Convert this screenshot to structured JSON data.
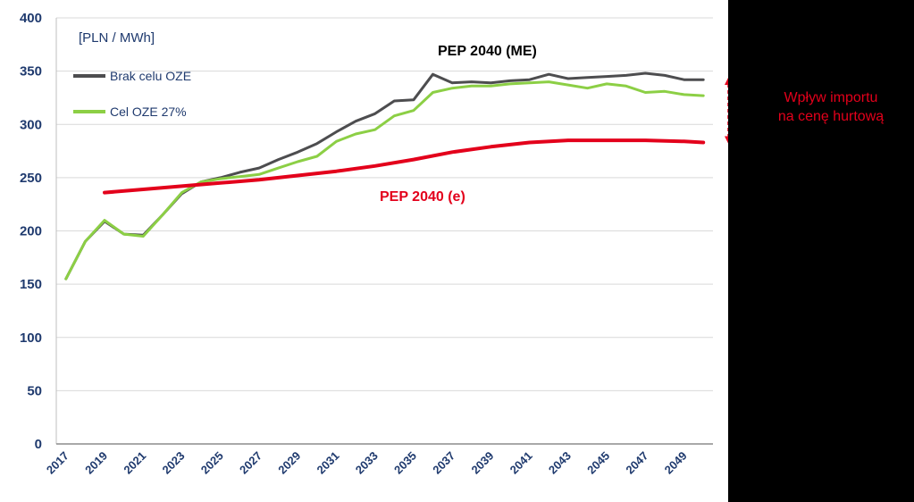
{
  "chart_data": {
    "type": "line",
    "unit": "[PLN / MWh]",
    "xlabel": "",
    "ylabel": "",
    "ylim": [
      0,
      400
    ],
    "y_ticks": [
      0,
      50,
      100,
      150,
      200,
      250,
      300,
      350,
      400
    ],
    "x_ticks": [
      "2017",
      "2019",
      "2021",
      "2023",
      "2025",
      "2027",
      "2029",
      "2031",
      "2033",
      "2035",
      "2037",
      "2039",
      "2041",
      "2043",
      "2045",
      "2047",
      "2049"
    ],
    "grid": true,
    "legend_position": "top-left",
    "x": [
      2017,
      2018,
      2019,
      2020,
      2021,
      2022,
      2023,
      2024,
      2025,
      2026,
      2027,
      2028,
      2029,
      2030,
      2031,
      2032,
      2033,
      2034,
      2035,
      2036,
      2037,
      2038,
      2039,
      2040,
      2041,
      2042,
      2043,
      2044,
      2045,
      2046,
      2047,
      2048,
      2049,
      2050
    ],
    "series": [
      {
        "name": "Brak celu OZE",
        "color": "#4d4d4f",
        "x": [
          2017,
          2018,
          2019,
          2020,
          2021,
          2022,
          2023,
          2024,
          2025,
          2026,
          2027,
          2028,
          2029,
          2030,
          2031,
          2032,
          2033,
          2034,
          2035,
          2036,
          2037,
          2038,
          2039,
          2040,
          2041,
          2042,
          2043,
          2044,
          2045,
          2046,
          2047,
          2048,
          2049,
          2050
        ],
        "values": [
          155,
          190,
          209,
          197,
          196,
          215,
          235,
          246,
          250,
          255,
          259,
          267,
          274,
          282,
          293,
          303,
          310,
          322,
          323,
          347,
          339,
          340,
          339,
          341,
          342,
          347,
          343,
          344,
          345,
          346,
          348,
          346,
          342,
          342
        ]
      },
      {
        "name": "Cel OZE 27%",
        "color": "#8ccf45",
        "x": [
          2017,
          2018,
          2019,
          2020,
          2021,
          2022,
          2023,
          2024,
          2025,
          2026,
          2027,
          2028,
          2029,
          2030,
          2031,
          2032,
          2033,
          2034,
          2035,
          2036,
          2037,
          2038,
          2039,
          2040,
          2041,
          2042,
          2043,
          2044,
          2045,
          2046,
          2047,
          2048,
          2049,
          2050
        ],
        "values": [
          155,
          190,
          210,
          197,
          195,
          215,
          236,
          246,
          249,
          251,
          253,
          259,
          265,
          270,
          284,
          291,
          295,
          308,
          313,
          330,
          334,
          336,
          336,
          338,
          339,
          340,
          337,
          334,
          338,
          336,
          330,
          331,
          328,
          327
        ]
      },
      {
        "name": "PEP 2040 (e)",
        "color": "#e3001b",
        "x": [
          2019,
          2021,
          2023,
          2025,
          2027,
          2029,
          2031,
          2033,
          2035,
          2037,
          2039,
          2041,
          2043,
          2045,
          2047,
          2049,
          2050
        ],
        "values": [
          236,
          239,
          242,
          245,
          248,
          252,
          256,
          261,
          267,
          274,
          279,
          283,
          285,
          285,
          285,
          284,
          283
        ]
      }
    ],
    "annotations": {
      "top_scenario_label": "PEP 2040 (ME)",
      "baseline_label": "PEP 2040 (e)",
      "impact_lines": [
        "Wpływ importu",
        "na cenę hurtową"
      ]
    },
    "impact_range": [
      283,
      343
    ],
    "colors": {
      "axis_text": "#1f3a6e",
      "grid": "#d9d9d9",
      "impact_arrow": "#e3001b",
      "panel": "#000000"
    }
  }
}
